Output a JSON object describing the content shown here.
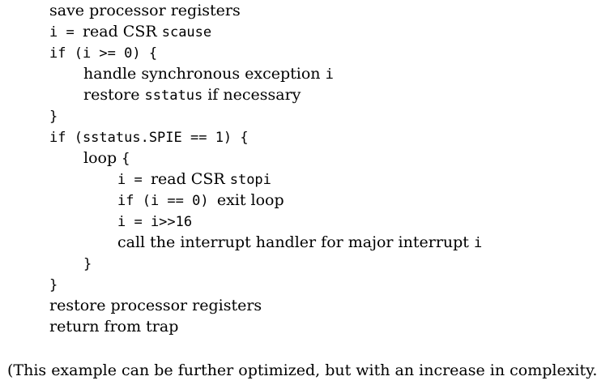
{
  "pseudocode": {
    "lines": [
      {
        "indent": 0,
        "segments": [
          {
            "t": "text",
            "v": "save processor registers"
          }
        ]
      },
      {
        "indent": 0,
        "segments": [
          {
            "t": "code",
            "v": "i = "
          },
          {
            "t": "text",
            "v": "read CSR "
          },
          {
            "t": "code",
            "v": "scause"
          }
        ]
      },
      {
        "indent": 0,
        "segments": [
          {
            "t": "code",
            "v": "if (i >= 0) {"
          }
        ]
      },
      {
        "indent": 1,
        "segments": [
          {
            "t": "text",
            "v": "handle synchronous exception "
          },
          {
            "t": "code",
            "v": "i"
          }
        ]
      },
      {
        "indent": 1,
        "segments": [
          {
            "t": "text",
            "v": "restore "
          },
          {
            "t": "code",
            "v": "sstatus"
          },
          {
            "t": "text",
            "v": " if necessary"
          }
        ]
      },
      {
        "indent": 0,
        "segments": [
          {
            "t": "code",
            "v": "}"
          }
        ]
      },
      {
        "indent": 0,
        "segments": [
          {
            "t": "code",
            "v": "if (sstatus.SPIE == 1) {"
          }
        ]
      },
      {
        "indent": 1,
        "segments": [
          {
            "t": "text",
            "v": "loop "
          },
          {
            "t": "code",
            "v": "{"
          }
        ]
      },
      {
        "indent": 2,
        "segments": [
          {
            "t": "code",
            "v": "i = "
          },
          {
            "t": "text",
            "v": "read CSR "
          },
          {
            "t": "code",
            "v": "stopi"
          }
        ]
      },
      {
        "indent": 2,
        "segments": [
          {
            "t": "code",
            "v": "if (i == 0) "
          },
          {
            "t": "text",
            "v": "exit loop"
          }
        ]
      },
      {
        "indent": 2,
        "segments": [
          {
            "t": "code",
            "v": "i = i>>16"
          }
        ]
      },
      {
        "indent": 2,
        "segments": [
          {
            "t": "text",
            "v": "call the interrupt handler for major interrupt "
          },
          {
            "t": "code",
            "v": "i"
          }
        ]
      },
      {
        "indent": 1,
        "segments": [
          {
            "t": "code",
            "v": "}"
          }
        ]
      },
      {
        "indent": 0,
        "segments": [
          {
            "t": "code",
            "v": "}"
          }
        ]
      },
      {
        "indent": 0,
        "segments": [
          {
            "t": "text",
            "v": "restore processor registers"
          }
        ]
      },
      {
        "indent": 0,
        "segments": [
          {
            "t": "text",
            "v": "return from trap"
          }
        ]
      }
    ]
  },
  "caption": "(This example can be further optimized, but with an increase in complexity.)"
}
